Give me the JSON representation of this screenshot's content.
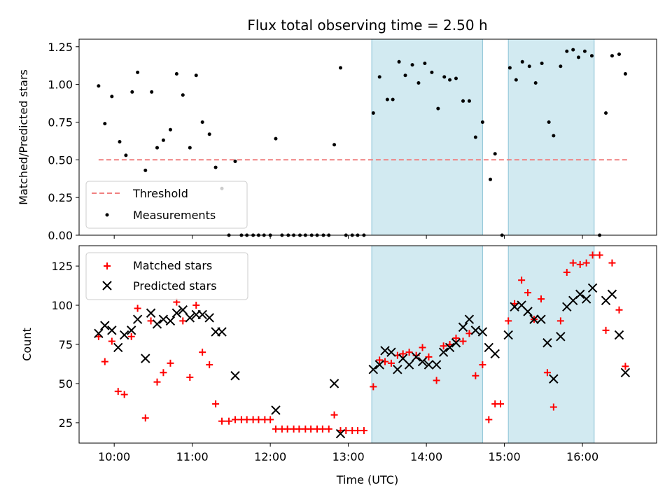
{
  "chart_data": [
    {
      "type": "scatter",
      "title": "Flux total observing time = 2.50 h",
      "xlabel": "",
      "ylabel": "Matched/Predicted stars",
      "xlim": [
        9.55,
        16.95
      ],
      "ylim": [
        0.0,
        1.3
      ],
      "yticks": [
        0.0,
        0.25,
        0.5,
        0.75,
        1.0,
        1.25
      ],
      "ytick_labels": [
        "0.00",
        "0.25",
        "0.50",
        "0.75",
        "1.00",
        "1.25"
      ],
      "xticks": [
        10,
        11,
        12,
        13,
        14,
        15,
        16
      ],
      "shaded_intervals": [
        [
          13.3,
          14.72
        ],
        [
          15.05,
          16.15
        ]
      ],
      "shade_color": "#add8e6",
      "threshold": {
        "name": "Threshold",
        "value": 0.5,
        "x_range": [
          9.8,
          16.58
        ],
        "color": "#f08080"
      },
      "series": [
        {
          "name": "Measurements",
          "color": "#000000",
          "points": [
            [
              9.8,
              0.99
            ],
            [
              9.88,
              0.74
            ],
            [
              9.97,
              0.92
            ],
            [
              10.07,
              0.62
            ],
            [
              10.15,
              0.53
            ],
            [
              10.23,
              0.95
            ],
            [
              10.3,
              1.08
            ],
            [
              10.4,
              0.43
            ],
            [
              10.48,
              0.95
            ],
            [
              10.55,
              0.58
            ],
            [
              10.63,
              0.63
            ],
            [
              10.72,
              0.7
            ],
            [
              10.8,
              1.07
            ],
            [
              10.88,
              0.93
            ],
            [
              10.97,
              0.58
            ],
            [
              11.05,
              1.06
            ],
            [
              11.13,
              0.75
            ],
            [
              11.22,
              0.67
            ],
            [
              11.3,
              0.45
            ],
            [
              11.38,
              0.31
            ],
            [
              11.47,
              0.0
            ],
            [
              11.55,
              0.49
            ],
            [
              11.63,
              0.0
            ],
            [
              11.7,
              0.0
            ],
            [
              11.78,
              0.0
            ],
            [
              11.85,
              0.0
            ],
            [
              11.92,
              0.0
            ],
            [
              12.0,
              0.0
            ],
            [
              12.07,
              0.64
            ],
            [
              12.15,
              0.0
            ],
            [
              12.23,
              0.0
            ],
            [
              12.3,
              0.0
            ],
            [
              12.38,
              0.0
            ],
            [
              12.45,
              0.0
            ],
            [
              12.53,
              0.0
            ],
            [
              12.6,
              0.0
            ],
            [
              12.68,
              0.0
            ],
            [
              12.75,
              0.0
            ],
            [
              12.82,
              0.6
            ],
            [
              12.9,
              1.11
            ],
            [
              12.97,
              0.0
            ],
            [
              13.05,
              0.0
            ],
            [
              13.12,
              0.0
            ],
            [
              13.2,
              0.0
            ],
            [
              13.32,
              0.81
            ],
            [
              13.4,
              1.05
            ],
            [
              13.5,
              0.9
            ],
            [
              13.57,
              0.9
            ],
            [
              13.65,
              1.15
            ],
            [
              13.73,
              1.06
            ],
            [
              13.82,
              1.13
            ],
            [
              13.9,
              1.01
            ],
            [
              13.98,
              1.14
            ],
            [
              14.07,
              1.08
            ],
            [
              14.15,
              0.84
            ],
            [
              14.23,
              1.05
            ],
            [
              14.3,
              1.03
            ],
            [
              14.38,
              1.04
            ],
            [
              14.47,
              0.89
            ],
            [
              14.55,
              0.89
            ],
            [
              14.63,
              0.65
            ],
            [
              14.72,
              0.75
            ],
            [
              14.82,
              0.37
            ],
            [
              14.88,
              0.54
            ],
            [
              14.97,
              0.0
            ],
            [
              15.07,
              1.11
            ],
            [
              15.15,
              1.03
            ],
            [
              15.23,
              1.15
            ],
            [
              15.32,
              1.12
            ],
            [
              15.4,
              1.01
            ],
            [
              15.48,
              1.14
            ],
            [
              15.57,
              0.75
            ],
            [
              15.63,
              0.66
            ],
            [
              15.72,
              1.12
            ],
            [
              15.8,
              1.22
            ],
            [
              15.88,
              1.23
            ],
            [
              15.95,
              1.18
            ],
            [
              16.03,
              1.22
            ],
            [
              16.12,
              1.19
            ],
            [
              16.22,
              0.0
            ],
            [
              16.3,
              0.81
            ],
            [
              16.38,
              1.19
            ],
            [
              16.47,
              1.2
            ],
            [
              16.55,
              1.07
            ]
          ]
        }
      ],
      "legend": {
        "position": "lower-left",
        "entries": [
          "Threshold",
          "Measurements"
        ]
      }
    },
    {
      "type": "scatter",
      "title": "",
      "xlabel": "Time (UTC)",
      "ylabel": "Count",
      "xlim": [
        9.55,
        16.95
      ],
      "ylim": [
        12,
        138
      ],
      "yticks": [
        25,
        50,
        75,
        100,
        125
      ],
      "ytick_labels": [
        "25",
        "50",
        "75",
        "100",
        "125"
      ],
      "xticks": [
        10,
        11,
        12,
        13,
        14,
        15,
        16
      ],
      "xtick_labels": [
        "10:00",
        "11:00",
        "12:00",
        "13:00",
        "14:00",
        "15:00",
        "16:00"
      ],
      "shaded_intervals": [
        [
          13.3,
          14.72
        ],
        [
          15.05,
          16.15
        ]
      ],
      "shade_color": "#add8e6",
      "series": [
        {
          "name": "Matched stars",
          "marker": "plus",
          "color": "#ff0000",
          "points": [
            [
              9.8,
              80
            ],
            [
              9.88,
              64
            ],
            [
              9.97,
              77
            ],
            [
              10.05,
              45
            ],
            [
              10.13,
              43
            ],
            [
              10.22,
              80
            ],
            [
              10.3,
              98
            ],
            [
              10.4,
              28
            ],
            [
              10.47,
              90
            ],
            [
              10.55,
              51
            ],
            [
              10.63,
              57
            ],
            [
              10.72,
              63
            ],
            [
              10.8,
              102
            ],
            [
              10.88,
              90
            ],
            [
              10.97,
              54
            ],
            [
              11.05,
              100
            ],
            [
              11.13,
              70
            ],
            [
              11.22,
              62
            ],
            [
              11.3,
              37
            ],
            [
              11.38,
              26
            ],
            [
              11.47,
              26
            ],
            [
              11.55,
              27
            ],
            [
              11.63,
              27
            ],
            [
              11.7,
              27
            ],
            [
              11.78,
              27
            ],
            [
              11.85,
              27
            ],
            [
              11.93,
              27
            ],
            [
              12.0,
              27
            ],
            [
              12.07,
              21
            ],
            [
              12.15,
              21
            ],
            [
              12.22,
              21
            ],
            [
              12.3,
              21
            ],
            [
              12.37,
              21
            ],
            [
              12.45,
              21
            ],
            [
              12.52,
              21
            ],
            [
              12.6,
              21
            ],
            [
              12.67,
              21
            ],
            [
              12.75,
              21
            ],
            [
              12.82,
              30
            ],
            [
              12.9,
              20
            ],
            [
              12.97,
              20
            ],
            [
              13.05,
              20
            ],
            [
              13.12,
              20
            ],
            [
              13.2,
              20
            ],
            [
              13.32,
              48
            ],
            [
              13.4,
              65
            ],
            [
              13.47,
              64
            ],
            [
              13.55,
              63
            ],
            [
              13.63,
              68
            ],
            [
              13.7,
              69
            ],
            [
              13.78,
              70
            ],
            [
              13.87,
              68
            ],
            [
              13.95,
              73
            ],
            [
              14.03,
              67
            ],
            [
              14.13,
              52
            ],
            [
              14.22,
              74
            ],
            [
              14.3,
              75
            ],
            [
              14.38,
              79
            ],
            [
              14.47,
              77
            ],
            [
              14.55,
              82
            ],
            [
              14.63,
              55
            ],
            [
              14.72,
              62
            ],
            [
              14.8,
              27
            ],
            [
              14.88,
              37
            ],
            [
              14.95,
              37
            ],
            [
              15.05,
              90
            ],
            [
              15.13,
              101
            ],
            [
              15.22,
              116
            ],
            [
              15.3,
              108
            ],
            [
              15.38,
              91
            ],
            [
              15.47,
              104
            ],
            [
              15.55,
              57
            ],
            [
              15.63,
              35
            ],
            [
              15.72,
              90
            ],
            [
              15.8,
              121
            ],
            [
              15.88,
              127
            ],
            [
              15.97,
              126
            ],
            [
              16.05,
              127
            ],
            [
              16.13,
              132
            ],
            [
              16.22,
              132
            ],
            [
              16.3,
              84
            ],
            [
              16.38,
              127
            ],
            [
              16.47,
              97
            ],
            [
              16.55,
              61
            ]
          ]
        },
        {
          "name": "Predicted stars",
          "marker": "x",
          "color": "#000000",
          "points": [
            [
              9.8,
              82
            ],
            [
              9.88,
              87
            ],
            [
              9.97,
              84
            ],
            [
              10.05,
              73
            ],
            [
              10.13,
              81
            ],
            [
              10.22,
              84
            ],
            [
              10.3,
              91
            ],
            [
              10.4,
              66
            ],
            [
              10.47,
              95
            ],
            [
              10.55,
              88
            ],
            [
              10.63,
              91
            ],
            [
              10.72,
              90
            ],
            [
              10.8,
              95
            ],
            [
              10.88,
              97
            ],
            [
              10.97,
              92
            ],
            [
              11.05,
              94
            ],
            [
              11.13,
              94
            ],
            [
              11.22,
              92
            ],
            [
              11.3,
              83
            ],
            [
              11.38,
              83
            ],
            [
              11.55,
              55
            ],
            [
              12.07,
              33
            ],
            [
              12.82,
              50
            ],
            [
              12.9,
              18
            ],
            [
              13.32,
              59
            ],
            [
              13.4,
              62
            ],
            [
              13.47,
              71
            ],
            [
              13.55,
              70
            ],
            [
              13.63,
              59
            ],
            [
              13.7,
              66
            ],
            [
              13.78,
              62
            ],
            [
              13.87,
              67
            ],
            [
              13.95,
              64
            ],
            [
              14.03,
              62
            ],
            [
              14.13,
              62
            ],
            [
              14.22,
              70
            ],
            [
              14.3,
              73
            ],
            [
              14.38,
              76
            ],
            [
              14.47,
              86
            ],
            [
              14.55,
              91
            ],
            [
              14.63,
              84
            ],
            [
              14.72,
              83
            ],
            [
              14.8,
              73
            ],
            [
              14.88,
              69
            ],
            [
              15.05,
              81
            ],
            [
              15.13,
              99
            ],
            [
              15.22,
              100
            ],
            [
              15.3,
              96
            ],
            [
              15.38,
              91
            ],
            [
              15.47,
              91
            ],
            [
              15.55,
              76
            ],
            [
              15.63,
              53
            ],
            [
              15.72,
              80
            ],
            [
              15.8,
              99
            ],
            [
              15.88,
              103
            ],
            [
              15.97,
              107
            ],
            [
              16.05,
              104
            ],
            [
              16.13,
              111
            ],
            [
              16.3,
              103
            ],
            [
              16.38,
              107
            ],
            [
              16.47,
              81
            ],
            [
              16.55,
              57
            ]
          ]
        }
      ],
      "legend": {
        "position": "upper-left",
        "entries": [
          "Matched stars",
          "Predicted stars"
        ]
      }
    }
  ]
}
